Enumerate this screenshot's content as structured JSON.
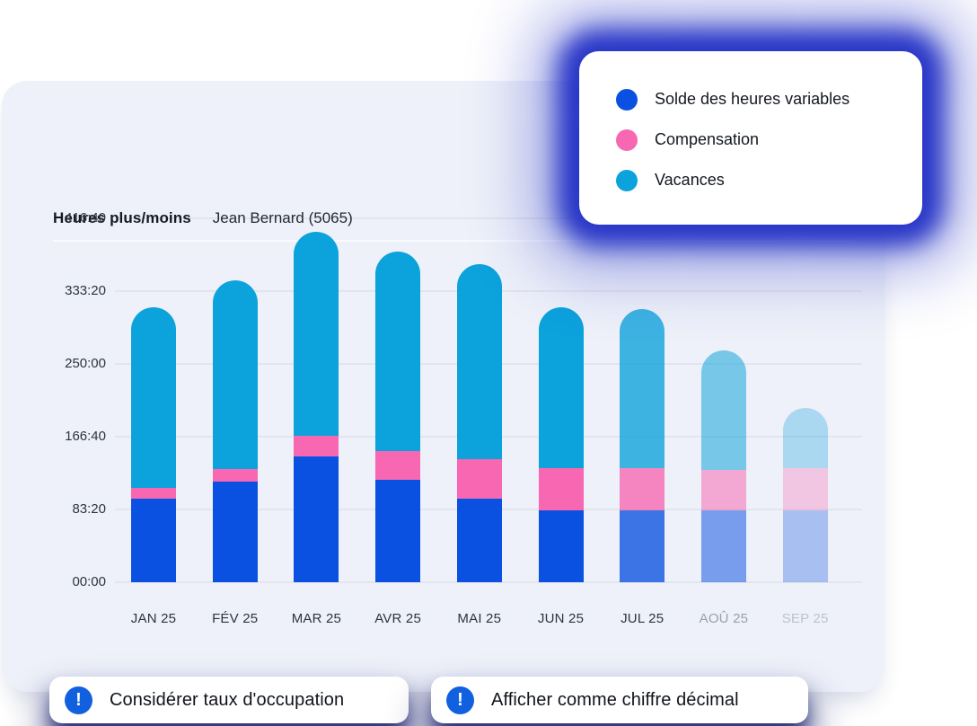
{
  "header": {
    "title": "Heures plus/moins",
    "subtitle": "Jean Bernard (5065)"
  },
  "legend": {
    "items": [
      {
        "label": "Solde des heures variables",
        "color": "#0b51e1"
      },
      {
        "label": "Compensation",
        "color": "#f767b2"
      },
      {
        "label": "Vacances",
        "color": "#0ca2dc"
      }
    ]
  },
  "chart_data": {
    "type": "bar",
    "stacked": true,
    "title": "Heures plus/moins",
    "subtitle": "Jean Bernard (5065)",
    "unit": "hours (displayed as HH:MM)",
    "ylim": [
      0,
      416.67
    ],
    "y_ticks": [
      "00:00",
      "83:20",
      "166:40",
      "250:00",
      "333:20",
      "416:40"
    ],
    "grid": true,
    "categories": [
      "JAN 25",
      "FÉV 25",
      "MAR 25",
      "AVR 25",
      "MAI 25",
      "JUN 25",
      "JUL 25",
      "AOÛ 25",
      "SEP 25"
    ],
    "series": [
      {
        "name": "Solde des heures variables",
        "color": "#0b51e1",
        "values": [
          96,
          115,
          144,
          117,
          96,
          82,
          82,
          82,
          82
        ]
      },
      {
        "name": "Compensation",
        "color": "#f767b2",
        "values": [
          12,
          15,
          24,
          33,
          45,
          49,
          49,
          47,
          49
        ]
      },
      {
        "name": "Vacances",
        "color": "#0ca2dc",
        "values": [
          207,
          216,
          233,
          229,
          223,
          184,
          182,
          136,
          69
        ]
      }
    ],
    "bar_opacity": [
      1,
      1,
      1,
      1,
      1,
      1,
      0.78,
      0.52,
      0.3
    ],
    "category_colors": [
      "#2b3442",
      "#2b3442",
      "#2b3442",
      "#2b3442",
      "#2b3442",
      "#2b3442",
      "#2b3442",
      "#98a1ad",
      "#bdc3cd"
    ],
    "legend_position": "top-right"
  },
  "footer": {
    "pills": [
      {
        "label": "Considérer taux d'occupation",
        "icon": "info-exclamation-icon"
      },
      {
        "label": "Afficher comme chiffre décimal",
        "icon": "info-exclamation-icon"
      }
    ]
  },
  "colors": {
    "card_background": "#eef1f9",
    "page_background": "#ffffff",
    "navy_glow": "#1c2bc3",
    "pill_icon_blue": "#1160e0",
    "gridline": "#e2e5ed"
  }
}
